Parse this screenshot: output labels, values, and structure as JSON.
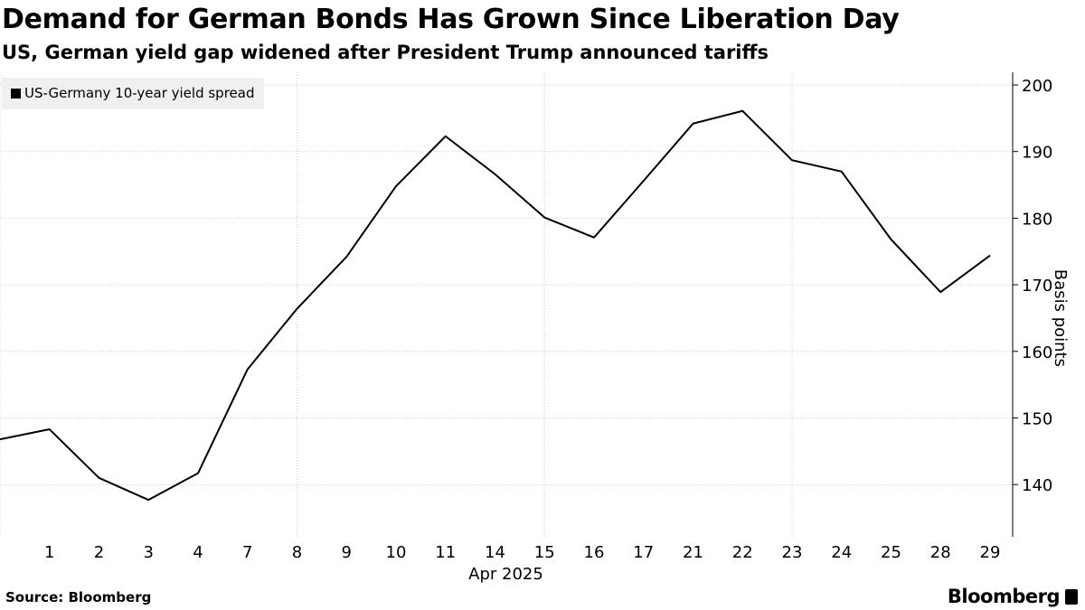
{
  "chart_data": {
    "type": "line",
    "title": "Demand for German Bonds Has Grown Since Liberation Day",
    "subtitle": "US, German yield gap widened after President Trump announced tariffs",
    "xlabel": "Apr 2025",
    "ylabel": "Basis points",
    "categories": [
      "",
      "1",
      "2",
      "3",
      "4",
      "7",
      "8",
      "9",
      "10",
      "11",
      "14",
      "15",
      "16",
      "17",
      "21",
      "22",
      "23",
      "24",
      "25",
      "28",
      "29"
    ],
    "series": [
      {
        "name": "US-Germany 10-year yield spread",
        "color": "#000000",
        "values": [
          146.8,
          148.3,
          141.0,
          137.7,
          141.7,
          157.3,
          166.4,
          174.2,
          184.8,
          192.3,
          186.6,
          180.1,
          177.1,
          185.6,
          194.2,
          196.1,
          188.7,
          187.0,
          176.8,
          168.9,
          174.4
        ]
      }
    ],
    "yticks": [
      140,
      150,
      160,
      170,
      180,
      190,
      200
    ],
    "ylim": [
      132.5,
      201.5
    ],
    "grid": true,
    "legend": "top-left",
    "yaxis_position": "right"
  },
  "source": "Source: Bloomberg",
  "brand": "Bloomberg"
}
